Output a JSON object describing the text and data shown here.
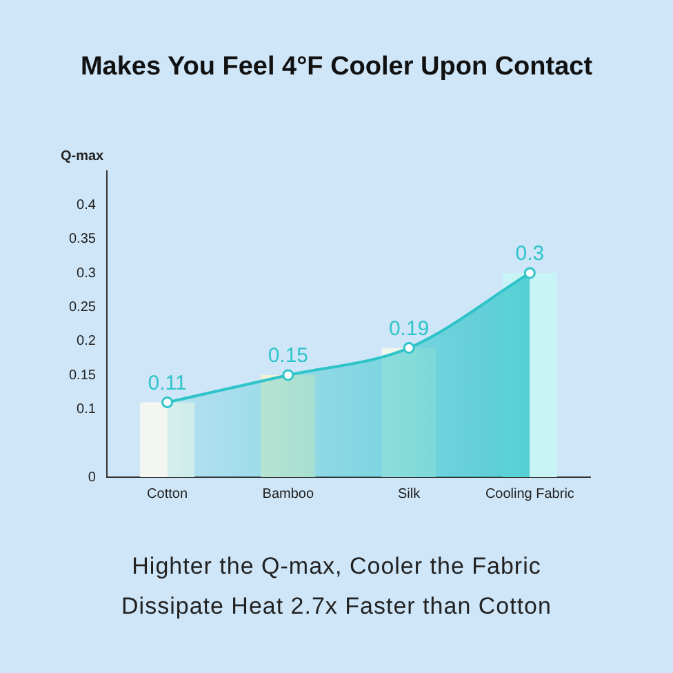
{
  "chart_data": {
    "type": "bar",
    "title": "Makes You Feel  4°F Cooler Upon Contact",
    "ylabel": "Q-max",
    "categories": [
      "Cotton",
      "Bamboo",
      "Silk",
      "Cooling Fabric"
    ],
    "series": [
      {
        "colors": [
          "#f4f6f2",
          "#f3f1d6",
          "#eef7ee",
          "#c8f4f6"
        ],
        "values": [
          0.11,
          0.15,
          0.19,
          0.3
        ]
      },
      {
        "type": "area",
        "color": "#2ec4c9",
        "values": [
          0.11,
          0.15,
          0.19,
          0.3
        ],
        "value_labels": [
          "0.11",
          "0.15",
          "0.19",
          "0.3"
        ],
        "marker": "circle"
      }
    ],
    "ylim": [
      0,
      0.45
    ],
    "yticks": [
      0,
      0.1,
      0.15,
      0.2,
      0.25,
      0.3,
      0.35,
      0.4
    ],
    "grid": false,
    "legend": false,
    "annotations": [
      "Highter the Q-max, Cooler the Fabric",
      "Dissipate Heat 2.7x Faster than Cotton"
    ]
  }
}
